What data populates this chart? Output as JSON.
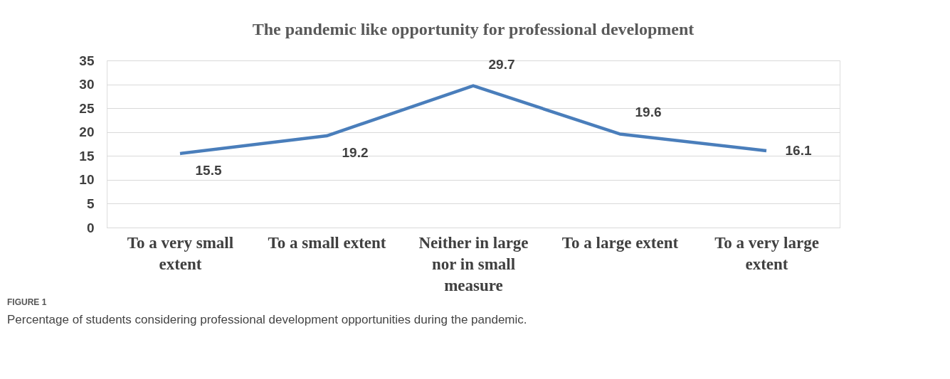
{
  "chart_data": {
    "type": "line",
    "title": "The pandemic like opportunity for professional development",
    "categories": [
      "To a very small extent",
      "To a small extent",
      "Neither in large nor in small measure",
      "To a large extent",
      "To a very large extent"
    ],
    "series": [
      {
        "color": "#4a7ebb",
        "values": [
          15.5,
          19.2,
          29.7,
          19.6,
          16.1
        ]
      }
    ],
    "ylim": [
      0,
      35
    ],
    "yticks": [
      0,
      5,
      10,
      15,
      20,
      25,
      30,
      35
    ],
    "grid": "y",
    "marker": "none",
    "line_style": "solid",
    "data_labels": true,
    "annotations": [
      "FIGURE 1",
      "Percentage of students considering professional development opportunities during the pandemic."
    ]
  }
}
